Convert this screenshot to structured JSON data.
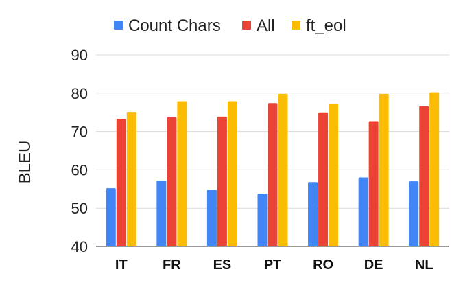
{
  "chart_data": {
    "type": "bar",
    "ylabel": "BLEU",
    "xlabel": "",
    "categories": [
      "IT",
      "FR",
      "ES",
      "PT",
      "RO",
      "DE",
      "NL"
    ],
    "ylim": [
      40,
      90
    ],
    "yticks": [
      40,
      50,
      60,
      70,
      80,
      90
    ],
    "grid": true,
    "legend_position": "top",
    "series": [
      {
        "name": "Count Chars",
        "color": "#4285f4",
        "values": [
          55.2,
          57.2,
          54.8,
          53.8,
          56.8,
          58.0,
          57.0
        ]
      },
      {
        "name": "All",
        "color": "#ea4335",
        "values": [
          73.3,
          73.7,
          73.9,
          77.4,
          75.0,
          72.7,
          76.6
        ]
      },
      {
        "name": "ft_eol",
        "color": "#fbbc04",
        "values": [
          75.1,
          77.9,
          77.9,
          79.8,
          77.2,
          79.8,
          80.2
        ]
      }
    ]
  }
}
